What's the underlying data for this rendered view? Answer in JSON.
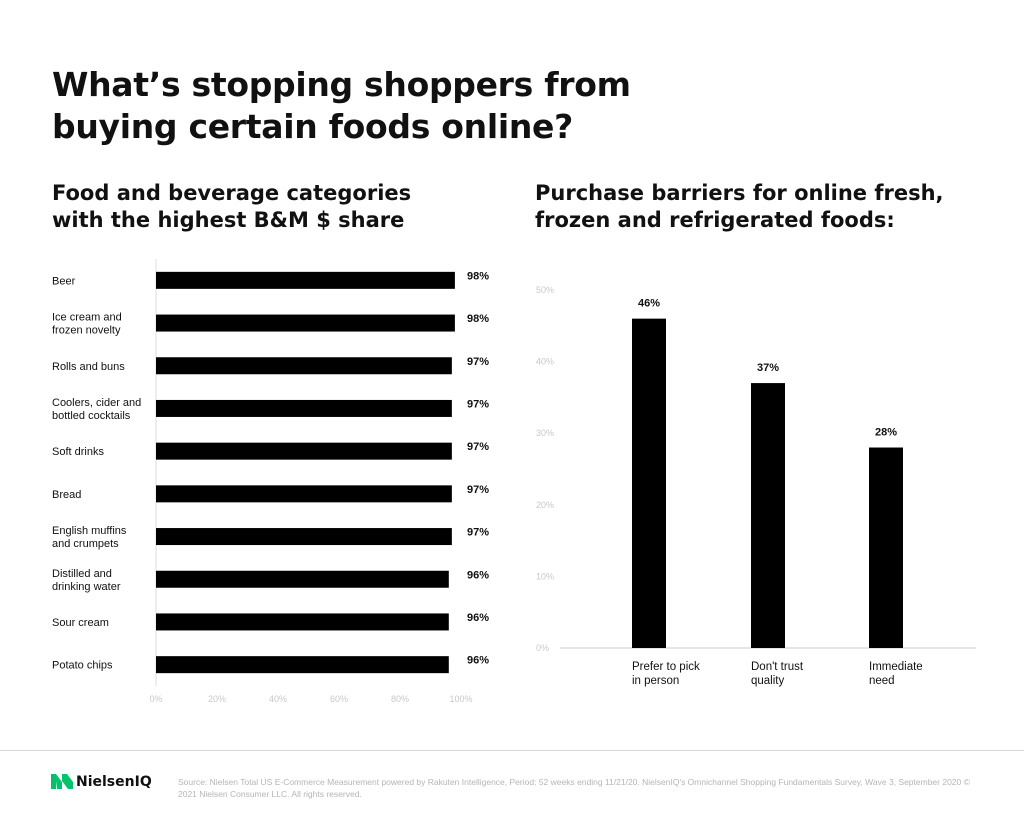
{
  "title": "What’s stopping shoppers from\nbuying certain foods online?",
  "chart_data": [
    {
      "type": "bar",
      "orientation": "horizontal",
      "title": "Food and beverage categories\nwith the highest B&M $ share",
      "categories": [
        "Beer",
        "Ice cream and\nfrozen novelty",
        "Rolls and buns",
        "Coolers, cider and\nbottled cocktails",
        "Soft drinks",
        "Bread",
        "English muffins\nand crumpets",
        "Distilled and\ndrinking water",
        "Sour cream",
        "Potato chips"
      ],
      "values": [
        98,
        98,
        97,
        97,
        97,
        97,
        97,
        96,
        96,
        96
      ],
      "value_labels": [
        "98%",
        "98%",
        "97%",
        "97%",
        "97%",
        "97%",
        "97%",
        "96%",
        "96%",
        "96%"
      ],
      "xlim": [
        0,
        100
      ],
      "ticks": [
        "0%",
        "20%",
        "40%",
        "60%",
        "80%",
        "100%"
      ],
      "grid": false,
      "bar_color": "#000000"
    },
    {
      "type": "bar",
      "orientation": "vertical",
      "title": "Purchase barriers for online fresh,\nfrozen and refrigerated foods:",
      "categories": [
        "Prefer to pick\nin person",
        "Don't trust\nquality",
        "Immediate\nneed"
      ],
      "values": [
        46,
        37,
        28
      ],
      "value_labels": [
        "46%",
        "37%",
        "28%"
      ],
      "ylim": [
        0,
        50
      ],
      "ticks": [
        "0%",
        "10%",
        "20%",
        "30%",
        "40%",
        "50%"
      ],
      "grid": false,
      "bar_color": "#000000"
    }
  ],
  "footer": {
    "brand": "NielsenIQ",
    "source": "Source: Nielsen Total US E-Commerce Measurement powered by Rakuten Intelligence, Period: 52 weeks ending 11/21/20. NielsenIQ's Omnichannel Shopping Fundamentals Survey, Wave 3, September 2020 © 2021 Nielsen Consumer LLC. All rights reserved.",
    "brand_color": "#00c36b",
    "axis_tick_color": "#c8c8c8"
  }
}
